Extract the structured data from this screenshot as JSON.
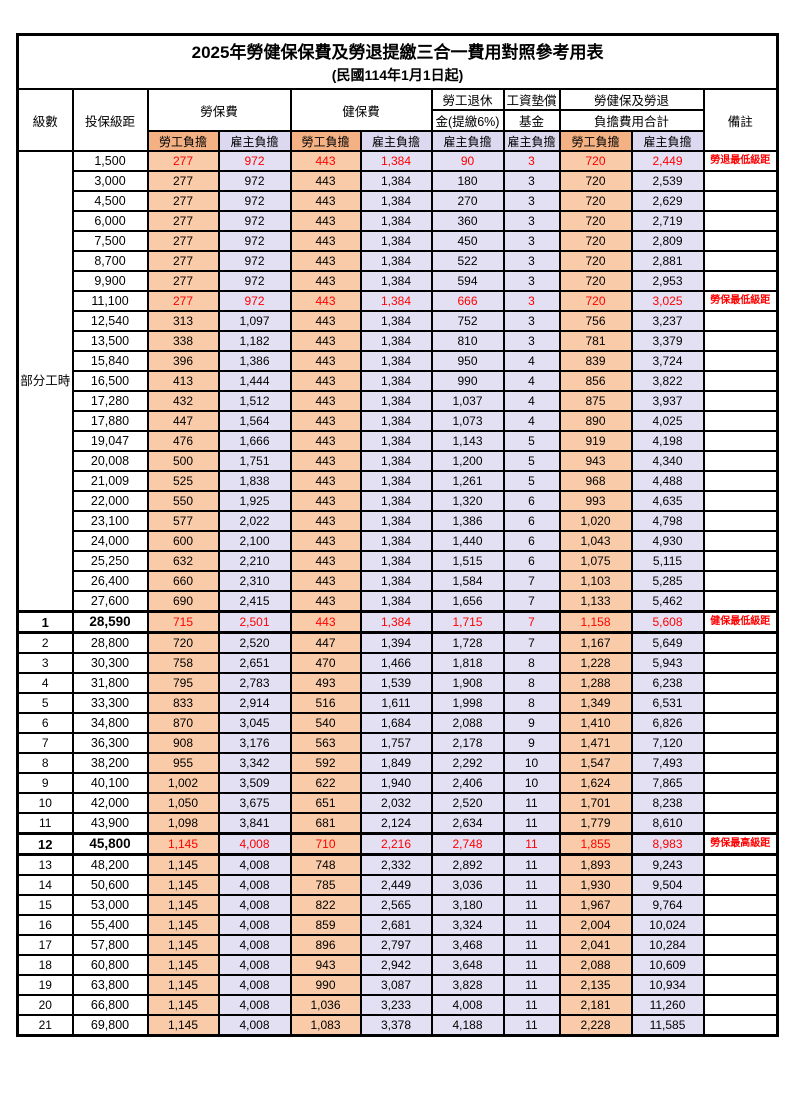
{
  "title": "2025年勞健保保費及勞退提繳三合一費用對照參考用表",
  "subtitle": "(民國114年1月1日起)",
  "header": {
    "level": "級數",
    "bracket": "投保級距",
    "labor_ins": "勞保費",
    "health_ins": "健保費",
    "pension_line1": "勞工退休",
    "pension_line2": "金(提繳6%)",
    "wage_fund_line1": "工資墊償",
    "wage_fund_line2": "基金",
    "total_line1": "勞健保及勞退",
    "total_line2": "負擔費用合計",
    "remark": "備註",
    "employee": "勞工負擔",
    "employer": "雇主負擔"
  },
  "part_time_label": "部分工時",
  "colors": {
    "header_orange": "#F4B183",
    "header_lavender": "#DBD8EF",
    "cell_orange": "#F9CBA8",
    "cell_lavender": "#E2E0F2",
    "highlight_red": "#FF0000"
  },
  "rows": [
    {
      "level": "",
      "bracket": "1,500",
      "li_e": "277",
      "li_r": "972",
      "hi_e": "443",
      "hi_r": "1,384",
      "pen": "90",
      "fund": "3",
      "tot_e": "720",
      "tot_r": "2,449",
      "remark": "勞退最低級距",
      "red": true,
      "bold": false
    },
    {
      "level": "",
      "bracket": "3,000",
      "li_e": "277",
      "li_r": "972",
      "hi_e": "443",
      "hi_r": "1,384",
      "pen": "180",
      "fund": "3",
      "tot_e": "720",
      "tot_r": "2,539",
      "remark": "",
      "red": false,
      "bold": false
    },
    {
      "level": "",
      "bracket": "4,500",
      "li_e": "277",
      "li_r": "972",
      "hi_e": "443",
      "hi_r": "1,384",
      "pen": "270",
      "fund": "3",
      "tot_e": "720",
      "tot_r": "2,629",
      "remark": "",
      "red": false,
      "bold": false
    },
    {
      "level": "",
      "bracket": "6,000",
      "li_e": "277",
      "li_r": "972",
      "hi_e": "443",
      "hi_r": "1,384",
      "pen": "360",
      "fund": "3",
      "tot_e": "720",
      "tot_r": "2,719",
      "remark": "",
      "red": false,
      "bold": false
    },
    {
      "level": "",
      "bracket": "7,500",
      "li_e": "277",
      "li_r": "972",
      "hi_e": "443",
      "hi_r": "1,384",
      "pen": "450",
      "fund": "3",
      "tot_e": "720",
      "tot_r": "2,809",
      "remark": "",
      "red": false,
      "bold": false
    },
    {
      "level": "",
      "bracket": "8,700",
      "li_e": "277",
      "li_r": "972",
      "hi_e": "443",
      "hi_r": "1,384",
      "pen": "522",
      "fund": "3",
      "tot_e": "720",
      "tot_r": "2,881",
      "remark": "",
      "red": false,
      "bold": false
    },
    {
      "level": "",
      "bracket": "9,900",
      "li_e": "277",
      "li_r": "972",
      "hi_e": "443",
      "hi_r": "1,384",
      "pen": "594",
      "fund": "3",
      "tot_e": "720",
      "tot_r": "2,953",
      "remark": "",
      "red": false,
      "bold": false
    },
    {
      "level": "",
      "bracket": "11,100",
      "li_e": "277",
      "li_r": "972",
      "hi_e": "443",
      "hi_r": "1,384",
      "pen": "666",
      "fund": "3",
      "tot_e": "720",
      "tot_r": "3,025",
      "remark": "勞保最低級距",
      "red": true,
      "bold": false
    },
    {
      "level": "",
      "bracket": "12,540",
      "li_e": "313",
      "li_r": "1,097",
      "hi_e": "443",
      "hi_r": "1,384",
      "pen": "752",
      "fund": "3",
      "tot_e": "756",
      "tot_r": "3,237",
      "remark": "",
      "red": false,
      "bold": false
    },
    {
      "level": "",
      "bracket": "13,500",
      "li_e": "338",
      "li_r": "1,182",
      "hi_e": "443",
      "hi_r": "1,384",
      "pen": "810",
      "fund": "3",
      "tot_e": "781",
      "tot_r": "3,379",
      "remark": "",
      "red": false,
      "bold": false
    },
    {
      "level": "",
      "bracket": "15,840",
      "li_e": "396",
      "li_r": "1,386",
      "hi_e": "443",
      "hi_r": "1,384",
      "pen": "950",
      "fund": "4",
      "tot_e": "839",
      "tot_r": "3,724",
      "remark": "",
      "red": false,
      "bold": false
    },
    {
      "level": "",
      "bracket": "16,500",
      "li_e": "413",
      "li_r": "1,444",
      "hi_e": "443",
      "hi_r": "1,384",
      "pen": "990",
      "fund": "4",
      "tot_e": "856",
      "tot_r": "3,822",
      "remark": "",
      "red": false,
      "bold": false
    },
    {
      "level": "",
      "bracket": "17,280",
      "li_e": "432",
      "li_r": "1,512",
      "hi_e": "443",
      "hi_r": "1,384",
      "pen": "1,037",
      "fund": "4",
      "tot_e": "875",
      "tot_r": "3,937",
      "remark": "",
      "red": false,
      "bold": false
    },
    {
      "level": "",
      "bracket": "17,880",
      "li_e": "447",
      "li_r": "1,564",
      "hi_e": "443",
      "hi_r": "1,384",
      "pen": "1,073",
      "fund": "4",
      "tot_e": "890",
      "tot_r": "4,025",
      "remark": "",
      "red": false,
      "bold": false
    },
    {
      "level": "",
      "bracket": "19,047",
      "li_e": "476",
      "li_r": "1,666",
      "hi_e": "443",
      "hi_r": "1,384",
      "pen": "1,143",
      "fund": "5",
      "tot_e": "919",
      "tot_r": "4,198",
      "remark": "",
      "red": false,
      "bold": false
    },
    {
      "level": "",
      "bracket": "20,008",
      "li_e": "500",
      "li_r": "1,751",
      "hi_e": "443",
      "hi_r": "1,384",
      "pen": "1,200",
      "fund": "5",
      "tot_e": "943",
      "tot_r": "4,340",
      "remark": "",
      "red": false,
      "bold": false
    },
    {
      "level": "",
      "bracket": "21,009",
      "li_e": "525",
      "li_r": "1,838",
      "hi_e": "443",
      "hi_r": "1,384",
      "pen": "1,261",
      "fund": "5",
      "tot_e": "968",
      "tot_r": "4,488",
      "remark": "",
      "red": false,
      "bold": false
    },
    {
      "level": "",
      "bracket": "22,000",
      "li_e": "550",
      "li_r": "1,925",
      "hi_e": "443",
      "hi_r": "1,384",
      "pen": "1,320",
      "fund": "6",
      "tot_e": "993",
      "tot_r": "4,635",
      "remark": "",
      "red": false,
      "bold": false
    },
    {
      "level": "",
      "bracket": "23,100",
      "li_e": "577",
      "li_r": "2,022",
      "hi_e": "443",
      "hi_r": "1,384",
      "pen": "1,386",
      "fund": "6",
      "tot_e": "1,020",
      "tot_r": "4,798",
      "remark": "",
      "red": false,
      "bold": false
    },
    {
      "level": "",
      "bracket": "24,000",
      "li_e": "600",
      "li_r": "2,100",
      "hi_e": "443",
      "hi_r": "1,384",
      "pen": "1,440",
      "fund": "6",
      "tot_e": "1,043",
      "tot_r": "4,930",
      "remark": "",
      "red": false,
      "bold": false
    },
    {
      "level": "",
      "bracket": "25,250",
      "li_e": "632",
      "li_r": "2,210",
      "hi_e": "443",
      "hi_r": "1,384",
      "pen": "1,515",
      "fund": "6",
      "tot_e": "1,075",
      "tot_r": "5,115",
      "remark": "",
      "red": false,
      "bold": false
    },
    {
      "level": "",
      "bracket": "26,400",
      "li_e": "660",
      "li_r": "2,310",
      "hi_e": "443",
      "hi_r": "1,384",
      "pen": "1,584",
      "fund": "7",
      "tot_e": "1,103",
      "tot_r": "5,285",
      "remark": "",
      "red": false,
      "bold": false
    },
    {
      "level": "",
      "bracket": "27,600",
      "li_e": "690",
      "li_r": "2,415",
      "hi_e": "443",
      "hi_r": "1,384",
      "pen": "1,656",
      "fund": "7",
      "tot_e": "1,133",
      "tot_r": "5,462",
      "remark": "",
      "red": false,
      "bold": false
    },
    {
      "level": "1",
      "bracket": "28,590",
      "li_e": "715",
      "li_r": "2,501",
      "hi_e": "443",
      "hi_r": "1,384",
      "pen": "1,715",
      "fund": "7",
      "tot_e": "1,158",
      "tot_r": "5,608",
      "remark": "健保最低級距",
      "red": true,
      "bold": true
    },
    {
      "level": "2",
      "bracket": "28,800",
      "li_e": "720",
      "li_r": "2,520",
      "hi_e": "447",
      "hi_r": "1,394",
      "pen": "1,728",
      "fund": "7",
      "tot_e": "1,167",
      "tot_r": "5,649",
      "remark": "",
      "red": false,
      "bold": false
    },
    {
      "level": "3",
      "bracket": "30,300",
      "li_e": "758",
      "li_r": "2,651",
      "hi_e": "470",
      "hi_r": "1,466",
      "pen": "1,818",
      "fund": "8",
      "tot_e": "1,228",
      "tot_r": "5,943",
      "remark": "",
      "red": false,
      "bold": false
    },
    {
      "level": "4",
      "bracket": "31,800",
      "li_e": "795",
      "li_r": "2,783",
      "hi_e": "493",
      "hi_r": "1,539",
      "pen": "1,908",
      "fund": "8",
      "tot_e": "1,288",
      "tot_r": "6,238",
      "remark": "",
      "red": false,
      "bold": false
    },
    {
      "level": "5",
      "bracket": "33,300",
      "li_e": "833",
      "li_r": "2,914",
      "hi_e": "516",
      "hi_r": "1,611",
      "pen": "1,998",
      "fund": "8",
      "tot_e": "1,349",
      "tot_r": "6,531",
      "remark": "",
      "red": false,
      "bold": false
    },
    {
      "level": "6",
      "bracket": "34,800",
      "li_e": "870",
      "li_r": "3,045",
      "hi_e": "540",
      "hi_r": "1,684",
      "pen": "2,088",
      "fund": "9",
      "tot_e": "1,410",
      "tot_r": "6,826",
      "remark": "",
      "red": false,
      "bold": false
    },
    {
      "level": "7",
      "bracket": "36,300",
      "li_e": "908",
      "li_r": "3,176",
      "hi_e": "563",
      "hi_r": "1,757",
      "pen": "2,178",
      "fund": "9",
      "tot_e": "1,471",
      "tot_r": "7,120",
      "remark": "",
      "red": false,
      "bold": false
    },
    {
      "level": "8",
      "bracket": "38,200",
      "li_e": "955",
      "li_r": "3,342",
      "hi_e": "592",
      "hi_r": "1,849",
      "pen": "2,292",
      "fund": "10",
      "tot_e": "1,547",
      "tot_r": "7,493",
      "remark": "",
      "red": false,
      "bold": false
    },
    {
      "level": "9",
      "bracket": "40,100",
      "li_e": "1,002",
      "li_r": "3,509",
      "hi_e": "622",
      "hi_r": "1,940",
      "pen": "2,406",
      "fund": "10",
      "tot_e": "1,624",
      "tot_r": "7,865",
      "remark": "",
      "red": false,
      "bold": false
    },
    {
      "level": "10",
      "bracket": "42,000",
      "li_e": "1,050",
      "li_r": "3,675",
      "hi_e": "651",
      "hi_r": "2,032",
      "pen": "2,520",
      "fund": "11",
      "tot_e": "1,701",
      "tot_r": "8,238",
      "remark": "",
      "red": false,
      "bold": false
    },
    {
      "level": "11",
      "bracket": "43,900",
      "li_e": "1,098",
      "li_r": "3,841",
      "hi_e": "681",
      "hi_r": "2,124",
      "pen": "2,634",
      "fund": "11",
      "tot_e": "1,779",
      "tot_r": "8,610",
      "remark": "",
      "red": false,
      "bold": false
    },
    {
      "level": "12",
      "bracket": "45,800",
      "li_e": "1,145",
      "li_r": "4,008",
      "hi_e": "710",
      "hi_r": "2,216",
      "pen": "2,748",
      "fund": "11",
      "tot_e": "1,855",
      "tot_r": "8,983",
      "remark": "勞保最高級距",
      "red": true,
      "bold": true
    },
    {
      "level": "13",
      "bracket": "48,200",
      "li_e": "1,145",
      "li_r": "4,008",
      "hi_e": "748",
      "hi_r": "2,332",
      "pen": "2,892",
      "fund": "11",
      "tot_e": "1,893",
      "tot_r": "9,243",
      "remark": "",
      "red": false,
      "bold": false
    },
    {
      "level": "14",
      "bracket": "50,600",
      "li_e": "1,145",
      "li_r": "4,008",
      "hi_e": "785",
      "hi_r": "2,449",
      "pen": "3,036",
      "fund": "11",
      "tot_e": "1,930",
      "tot_r": "9,504",
      "remark": "",
      "red": false,
      "bold": false
    },
    {
      "level": "15",
      "bracket": "53,000",
      "li_e": "1,145",
      "li_r": "4,008",
      "hi_e": "822",
      "hi_r": "2,565",
      "pen": "3,180",
      "fund": "11",
      "tot_e": "1,967",
      "tot_r": "9,764",
      "remark": "",
      "red": false,
      "bold": false
    },
    {
      "level": "16",
      "bracket": "55,400",
      "li_e": "1,145",
      "li_r": "4,008",
      "hi_e": "859",
      "hi_r": "2,681",
      "pen": "3,324",
      "fund": "11",
      "tot_e": "2,004",
      "tot_r": "10,024",
      "remark": "",
      "red": false,
      "bold": false
    },
    {
      "level": "17",
      "bracket": "57,800",
      "li_e": "1,145",
      "li_r": "4,008",
      "hi_e": "896",
      "hi_r": "2,797",
      "pen": "3,468",
      "fund": "11",
      "tot_e": "2,041",
      "tot_r": "10,284",
      "remark": "",
      "red": false,
      "bold": false
    },
    {
      "level": "18",
      "bracket": "60,800",
      "li_e": "1,145",
      "li_r": "4,008",
      "hi_e": "943",
      "hi_r": "2,942",
      "pen": "3,648",
      "fund": "11",
      "tot_e": "2,088",
      "tot_r": "10,609",
      "remark": "",
      "red": false,
      "bold": false
    },
    {
      "level": "19",
      "bracket": "63,800",
      "li_e": "1,145",
      "li_r": "4,008",
      "hi_e": "990",
      "hi_r": "3,087",
      "pen": "3,828",
      "fund": "11",
      "tot_e": "2,135",
      "tot_r": "10,934",
      "remark": "",
      "red": false,
      "bold": false
    },
    {
      "level": "20",
      "bracket": "66,800",
      "li_e": "1,145",
      "li_r": "4,008",
      "hi_e": "1,036",
      "hi_r": "3,233",
      "pen": "4,008",
      "fund": "11",
      "tot_e": "2,181",
      "tot_r": "11,260",
      "remark": "",
      "red": false,
      "bold": false
    },
    {
      "level": "21",
      "bracket": "69,800",
      "li_e": "1,145",
      "li_r": "4,008",
      "hi_e": "1,083",
      "hi_r": "3,378",
      "pen": "4,188",
      "fund": "11",
      "tot_e": "2,228",
      "tot_r": "11,585",
      "remark": "",
      "red": false,
      "bold": false
    }
  ]
}
